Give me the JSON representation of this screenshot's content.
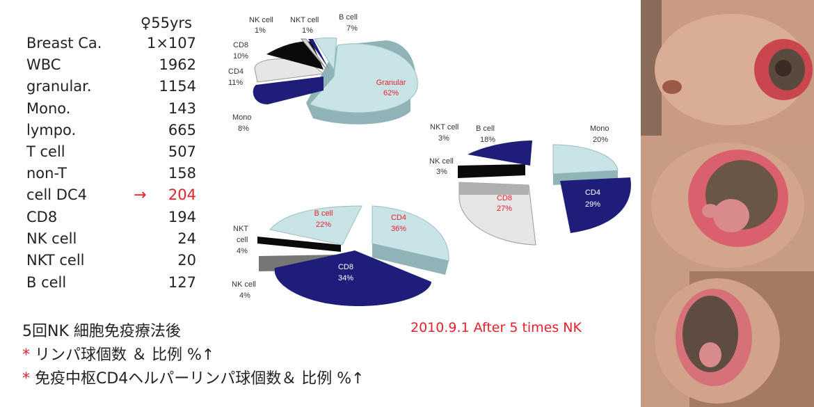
{
  "header": {
    "patient": "♀55yrs"
  },
  "stats": [
    {
      "label": "Breast Ca.",
      "value": "1×107"
    },
    {
      "label": "WBC",
      "value": "1962"
    },
    {
      "label": "granular.",
      "value": "1154"
    },
    {
      "label": "Mono.",
      "value": "143"
    },
    {
      "label": "lympo.",
      "value": "665"
    },
    {
      "label": "T cell",
      "value": "507"
    },
    {
      "label": "non-T",
      "value": "158"
    },
    {
      "label": "cell DC4",
      "value": "204"
    },
    {
      "label": "CD8",
      "value": "194"
    },
    {
      "label": "NK cell",
      "value": "24"
    },
    {
      "label": "NKT cell",
      "value": "20"
    },
    {
      "label": "B cell",
      "value": "127"
    }
  ],
  "arrow": "→",
  "notes": {
    "line1": "5回NK 細胞免疫療法後",
    "line2_star": "*",
    "line2": " リンパ球個数 ＆ 比例 %↑",
    "line3_star": "*",
    "line3": " 免疫中枢CD4ヘルパーリンパ球個数＆ 比例 %↑"
  },
  "date": "2010.9.1 After 5 times NK",
  "colors": {
    "accent": "#e8202a",
    "navy": "#1e1e7a",
    "lightblue": "#c9e4e6",
    "teal": "#8fb3b6"
  },
  "pie1": {
    "labels": {
      "nk": "NK cell",
      "nk_pct": "1%",
      "nkt": "NKT cell",
      "nkt_pct": "1%",
      "b": "B cell",
      "b_pct": "7%",
      "cd8": "CD8",
      "cd8_pct": "10%",
      "cd4": "CD4",
      "cd4_pct": "11%",
      "mono": "Mono",
      "mono_pct": "8%",
      "gran": "Granular",
      "gran_pct": "62%"
    }
  },
  "pie2": {
    "labels": {
      "nkt": "NKT cell",
      "nkt_pct": "3%",
      "b": "B cell",
      "b_pct": "18%",
      "mono": "Mono",
      "mono_pct": "20%",
      "nk": "NK cell",
      "nk_pct": "3%",
      "cd8": "CD8",
      "cd8_pct": "27%",
      "cd4": "CD4",
      "cd4_pct": "29%"
    }
  },
  "pie3": {
    "labels": {
      "b": "B cell",
      "b_pct": "22%",
      "cd4": "CD4",
      "cd4_pct": "36%",
      "nkt": "NKT",
      "nkt2": "cell",
      "nkt_pct": "4%",
      "cd8": "CD8",
      "cd8_pct": "34%",
      "nk": "NK cell",
      "nk_pct": "4%"
    }
  }
}
